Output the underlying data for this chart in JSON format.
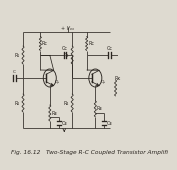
{
  "title": "Fig. 16.12   Two-Stage R-C Coupled Transistor Amplifi",
  "bg_color": "#dedad0",
  "line_color": "#2a2520",
  "text_color": "#2a2520",
  "title_fontsize": 4.2,
  "label_fontsize": 3.5,
  "vcc_label": "+ Vₒₓ",
  "q1_label": "Q₁",
  "q2_label": "Q₂",
  "r1_label": "R₁",
  "r2_label": "R₂",
  "r3_label": "R₃",
  "r4_label": "R₄",
  "rc1_label": "Rᴄ",
  "rc2_label": "Rᴄ",
  "re1_label": "Rᴇ",
  "re2_label": "Rᴇ",
  "cc1_label": "Cᴄ",
  "cc2_label": "Cᴄ",
  "ce1_label": "Cᴇ",
  "ce2_label": "Cᴇ",
  "cin_label": "Cᴵ",
  "rb_label": "Rᴋ"
}
